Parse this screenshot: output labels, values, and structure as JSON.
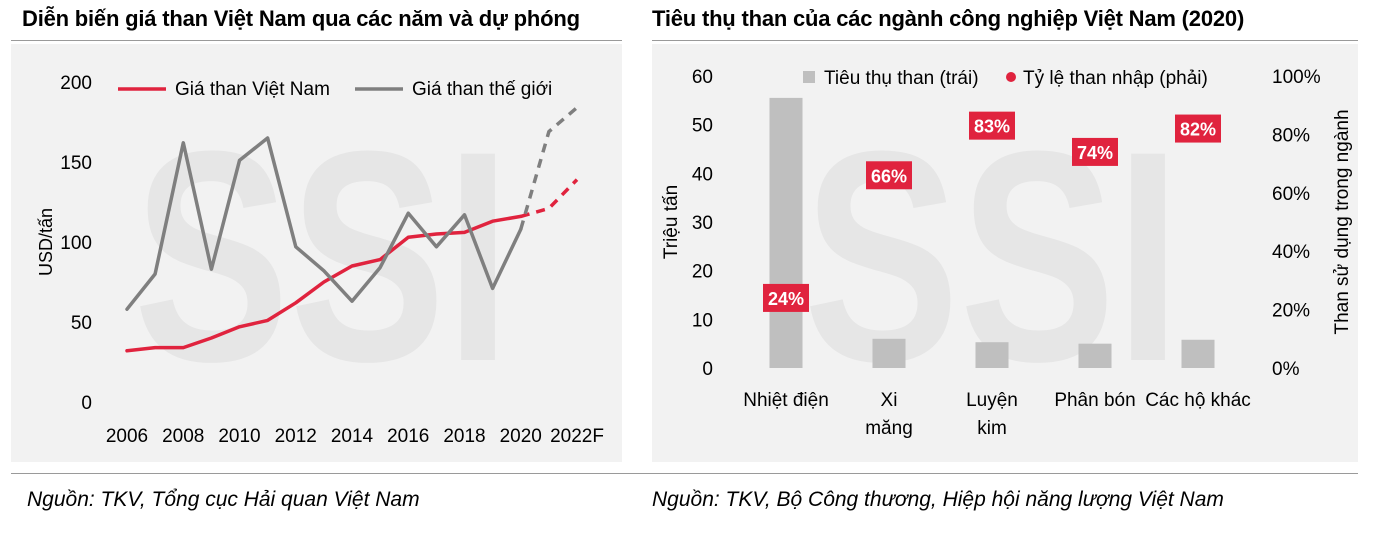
{
  "titles": {
    "left": "Diễn biến giá than Việt Nam qua các năm và dự phóng",
    "right": "Tiêu thụ than của các ngành công nghiệp Việt Nam (2020)"
  },
  "sources": {
    "left": "Nguồn: TKV, Tổng cục Hải quan Việt Nam",
    "right": "Nguồn: TKV, Bộ Công thương, Hiệp hội năng lượng Việt Nam"
  },
  "watermark": "SSI",
  "chart_data": [
    {
      "type": "line",
      "title": "Diễn biến giá than Việt Nam qua các năm và dự phóng",
      "ylabel": "USD/tấn",
      "ylim": [
        0,
        200
      ],
      "yticks": [
        0,
        50,
        100,
        150,
        200
      ],
      "x": [
        2006,
        2007,
        2008,
        2009,
        2010,
        2011,
        2012,
        2013,
        2014,
        2015,
        2016,
        2017,
        2018,
        2019,
        2020,
        2021,
        2022
      ],
      "xtick_labels": [
        "2006",
        "2008",
        "2010",
        "2012",
        "2014",
        "2016",
        "2018",
        "2020",
        "2022F"
      ],
      "xtick_values": [
        2006,
        2008,
        2010,
        2012,
        2014,
        2016,
        2018,
        2020,
        2022
      ],
      "forecast_from": 2020,
      "legend_position": "top",
      "series": [
        {
          "name": "Giá than Việt Nam",
          "color": "#e0233e",
          "values": [
            32,
            34,
            34,
            40,
            47,
            51,
            62,
            75,
            85,
            89,
            103,
            105,
            106,
            113,
            116,
            121,
            139
          ]
        },
        {
          "name": "Giá than thế giới",
          "color": "#7f7f7f",
          "values": [
            58,
            80,
            162,
            83,
            151,
            165,
            97,
            82,
            63,
            84,
            118,
            97,
            117,
            71,
            108,
            169,
            184
          ]
        }
      ]
    },
    {
      "type": "bar",
      "title": "Tiêu thụ than của các ngành công nghiệp Việt Nam (2020)",
      "categories": [
        [
          "Nhiệt điện"
        ],
        [
          "Xi",
          "măng"
        ],
        [
          "Luyện",
          "kim"
        ],
        [
          "Phân bón"
        ],
        [
          "Các hộ khác"
        ]
      ],
      "series": [
        {
          "name": "Tiêu thụ than (trái)",
          "color": "#bfbfbf",
          "axis": "left",
          "values": [
            55.5,
            6,
            5.3,
            5,
            5.8
          ]
        },
        {
          "name": "Tỷ lệ than nhập (phải)",
          "color": "#e0233e",
          "axis": "right",
          "values": [
            24,
            66,
            83,
            74,
            82
          ],
          "labels": [
            "24%",
            "66%",
            "83%",
            "74%",
            "82%"
          ]
        }
      ],
      "ylabel": "Triệu tấn",
      "ylim": [
        0,
        60
      ],
      "yticks": [
        0,
        10,
        20,
        30,
        40,
        50,
        60
      ],
      "y2label": "Than sử dụng trong ngành",
      "y2lim": [
        0,
        100
      ],
      "y2ticks": [
        "0%",
        "20%",
        "40%",
        "60%",
        "80%",
        "100%"
      ],
      "legend_position": "top"
    }
  ]
}
